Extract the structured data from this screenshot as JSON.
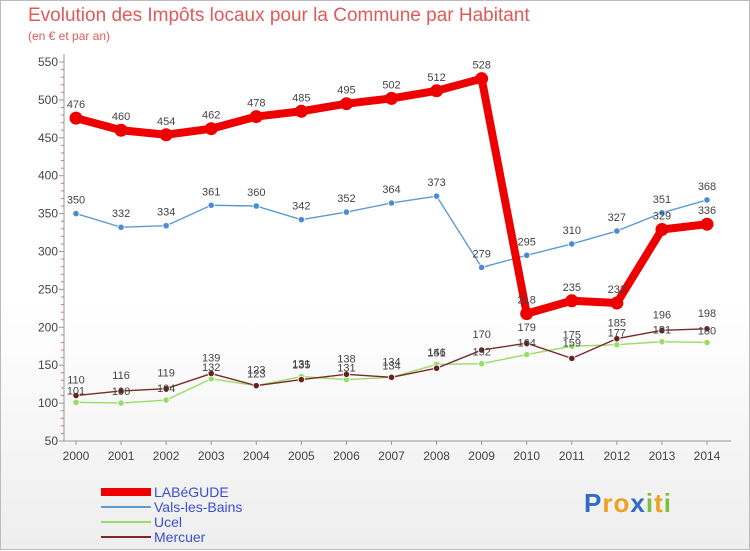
{
  "title": "Evolution des Impôts locaux pour la Commune par Habitant",
  "subtitle": "(en € et par an)",
  "logo": {
    "letters": [
      "P",
      "r",
      "o",
      "x",
      "i",
      "t",
      "i"
    ],
    "colors": [
      "#2f6cc6",
      "#f0a020",
      "#f0a020",
      "#2f6cc6",
      "#7cbf3a",
      "#f0a020",
      "#7cbf3a"
    ]
  },
  "chart_data": {
    "type": "line",
    "x": [
      "2000",
      "2001",
      "2002",
      "2003",
      "2004",
      "2005",
      "2006",
      "2007",
      "2008",
      "2009",
      "2010",
      "2011",
      "2012",
      "2013",
      "2014"
    ],
    "yticks": [
      "50",
      "100",
      "150",
      "200",
      "250",
      "300",
      "350",
      "400",
      "450",
      "500",
      "550"
    ],
    "ylim": [
      50,
      550
    ],
    "grid": false,
    "legend_position": "bottom-left",
    "series": [
      {
        "name": "LABéGUDE",
        "color": "#ee0000",
        "values": [
          476,
          460,
          454,
          462,
          478,
          485,
          495,
          502,
          512,
          528,
          218,
          235,
          232,
          329,
          336
        ]
      },
      {
        "name": "Vals-les-Bains",
        "color": "#5b9bd5",
        "values": [
          350,
          332,
          334,
          361,
          360,
          342,
          352,
          364,
          373,
          279,
          295,
          310,
          327,
          351,
          368
        ]
      },
      {
        "name": "Ucel",
        "color": "#99dd66",
        "values": [
          101,
          100,
          104,
          132,
          123,
          135,
          131,
          134,
          151,
          152,
          164,
          175,
          177,
          181,
          180
        ]
      },
      {
        "name": "Mercuer",
        "color": "#7a2a2a",
        "values": [
          110,
          116,
          119,
          139,
          123,
          131,
          138,
          134,
          146,
          170,
          179,
          159,
          185,
          196,
          198
        ]
      }
    ]
  }
}
